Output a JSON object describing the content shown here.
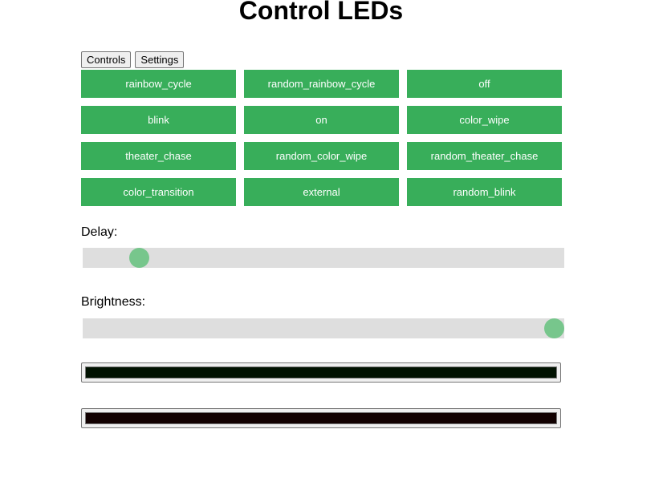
{
  "title": "Control LEDs",
  "tabs": [
    {
      "label": "Controls"
    },
    {
      "label": "Settings"
    }
  ],
  "modes": [
    "rainbow_cycle",
    "random_rainbow_cycle",
    "off",
    "blink",
    "on",
    "color_wipe",
    "theater_chase",
    "random_color_wipe",
    "random_theater_chase",
    "color_transition",
    "external",
    "random_blink"
  ],
  "delay": {
    "label": "Delay:",
    "value_percent": 10
  },
  "brightness": {
    "label": "Brightness:",
    "value_percent": 100
  },
  "colors": [
    "#001100",
    "#110000"
  ],
  "accent": "#38ae5a"
}
